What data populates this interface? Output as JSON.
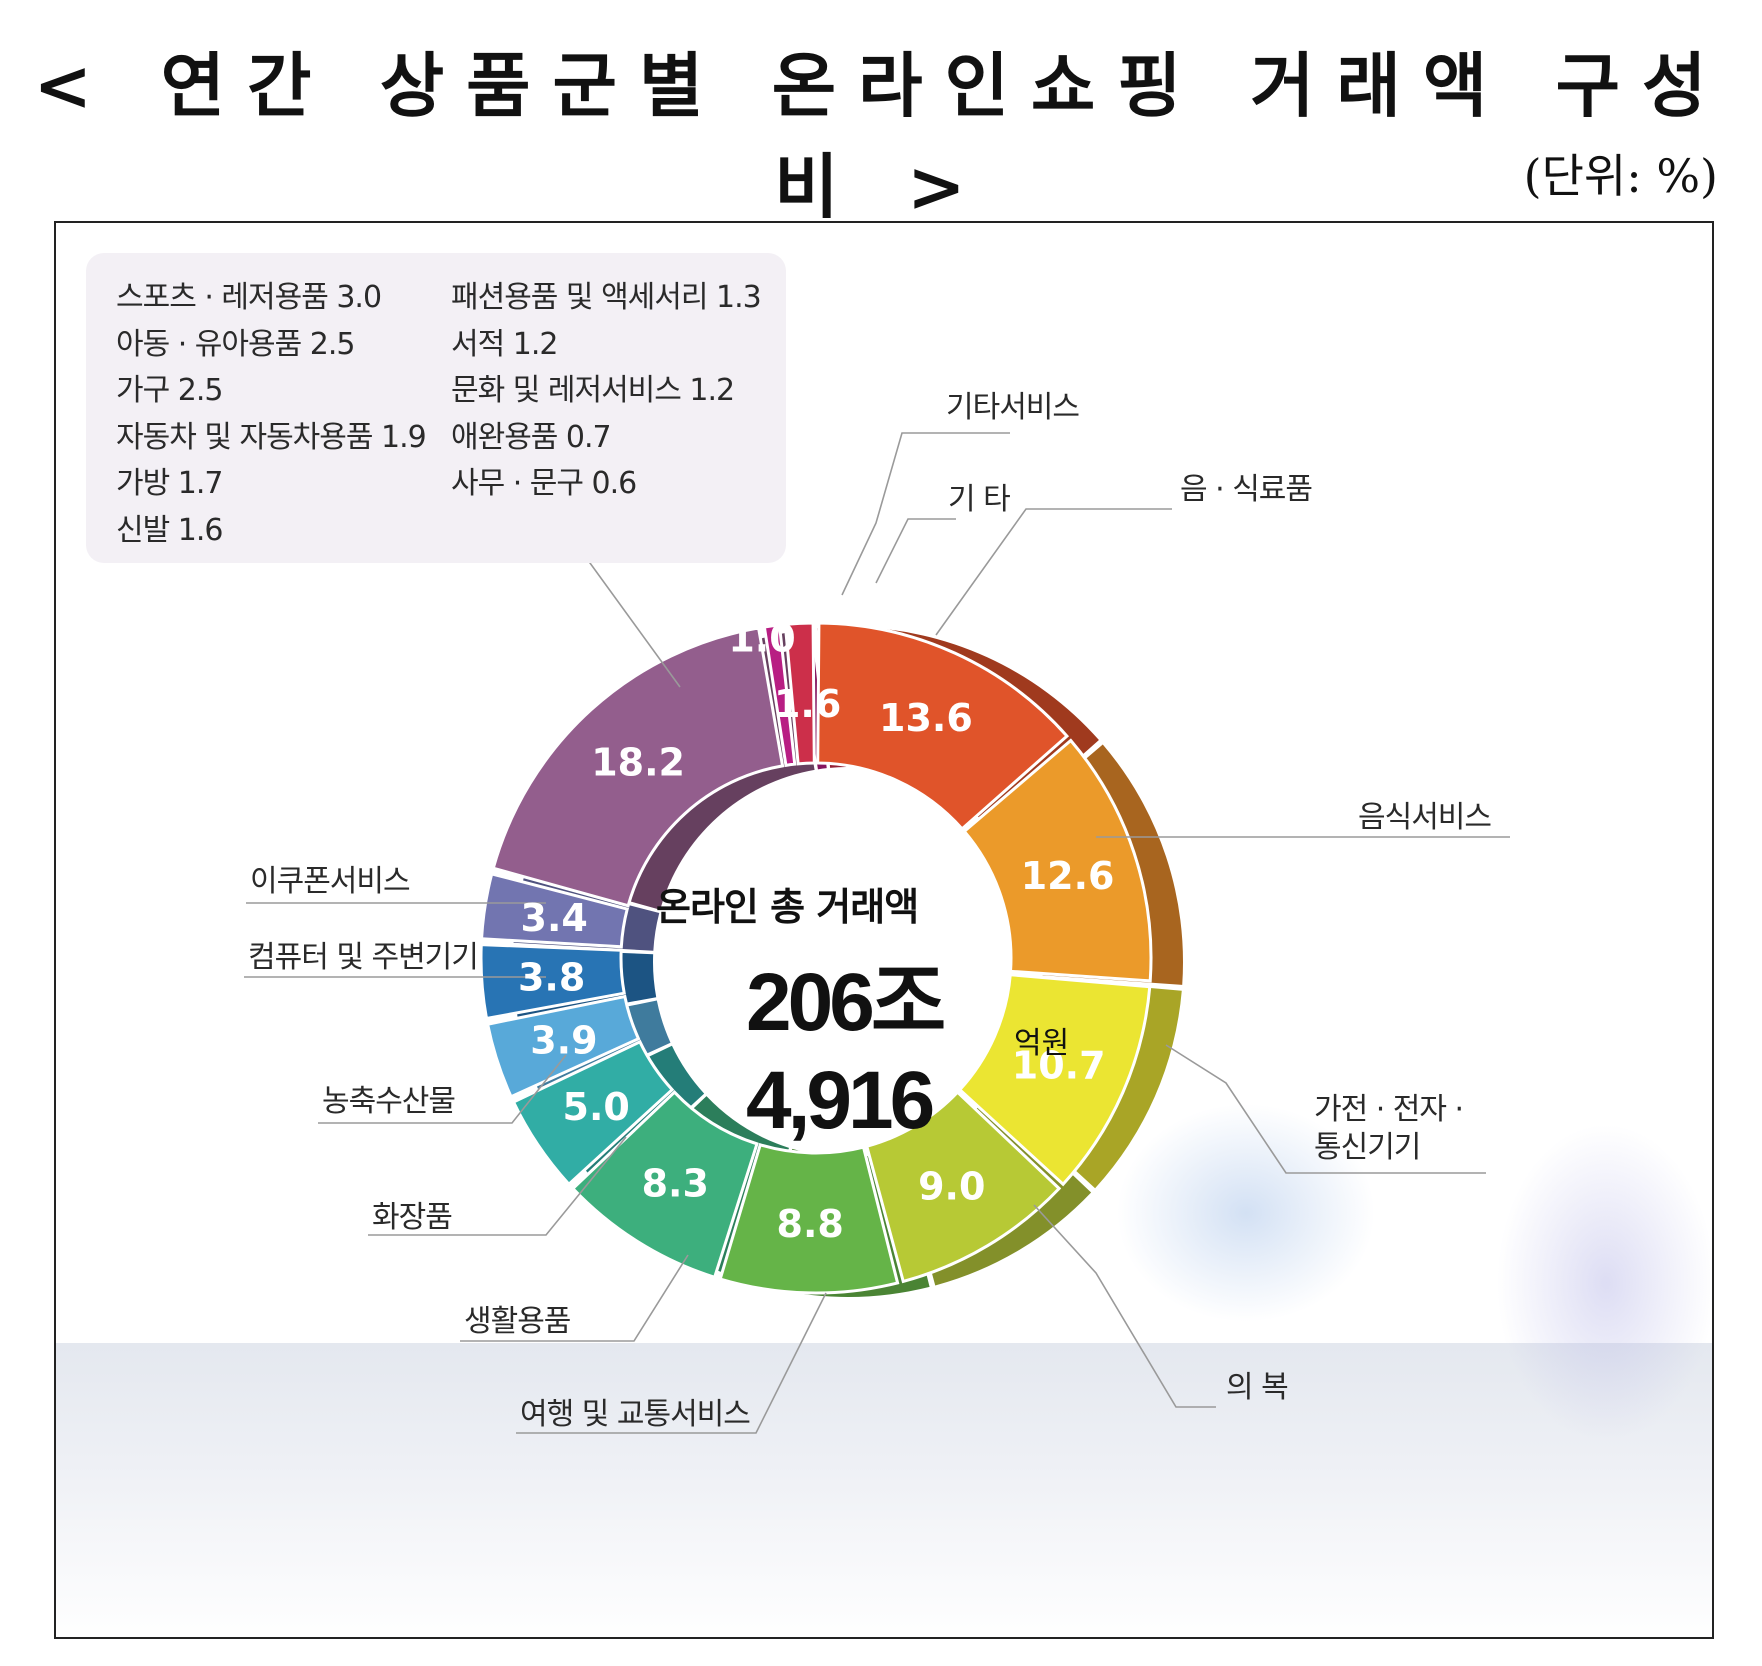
{
  "title": "< 연간 상품군별 온라인쇼핑 거래액 구성비 >",
  "unit": "(단위: %)",
  "center": {
    "title": "온라인 총 거래액",
    "total": "206조 4,916",
    "unit": "억원"
  },
  "others_box": {
    "left": [
      "스포츠 · 레저용품 3.0",
      "아동 · 유아용품 2.5",
      "가구 2.5",
      "자동차 및 자동차용품 1.9",
      "가방 1.7",
      "신발 1.6"
    ],
    "right": [
      "패션용품 및 액세서리 1.3",
      "서적 1.2",
      "문화 및 레저서비스 1.2",
      "애완용품 0.7",
      "사무 · 문구 0.6"
    ]
  },
  "chart_data": {
    "type": "pie",
    "title": "< 연간 상품군별 온라인쇼핑 거래액 구성비 >",
    "unit": "(단위: %)",
    "categories": [
      "음 · 식료품",
      "음식서비스",
      "가전 · 전자 · 통신기기",
      "의 복",
      "여행 및 교통서비스",
      "생활용품",
      "화장품",
      "농축수산물",
      "컴퓨터 및 주변기기",
      "이쿠폰서비스",
      "",
      "기타서비스",
      "기 타"
    ],
    "values": [
      13.6,
      12.6,
      10.7,
      9.0,
      8.8,
      8.3,
      5.0,
      3.9,
      3.8,
      3.4,
      18.2,
      1.0,
      1.6
    ],
    "value_labels": [
      "13.6",
      "12.6",
      "10.7",
      "9.0",
      "8.8",
      "8.3",
      "5.0",
      "3.9",
      "3.8",
      "3.4",
      "18.2",
      "1.0",
      "1.6"
    ],
    "colors": [
      "#e0542a",
      "#eb9a2a",
      "#ebe532",
      "#b7c935",
      "#65b448",
      "#3daf7d",
      "#31ada5",
      "#58a9d9",
      "#2874b4",
      "#7275b0",
      "#935e8d",
      "#b81e83",
      "#cc2f4a"
    ],
    "side_colors": [
      "#a03a1e",
      "#a8651f",
      "#a9a526",
      "#83902a",
      "#4a8434",
      "#2c7e5b",
      "#247d78",
      "#3f7b9d",
      "#1c5483",
      "#4f527f",
      "#66405f",
      "#85155f",
      "#942237"
    ]
  }
}
